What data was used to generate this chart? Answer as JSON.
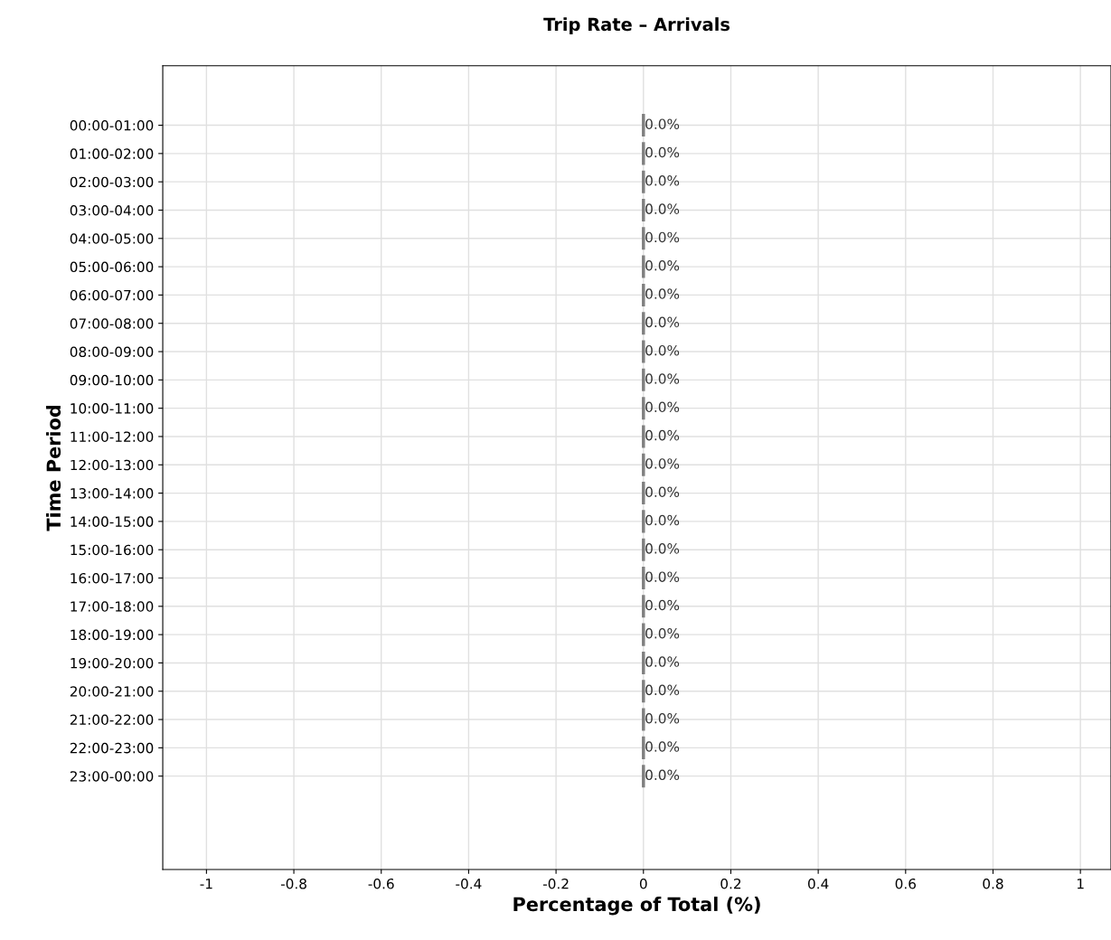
{
  "chart_data": {
    "type": "bar",
    "orientation": "horizontal",
    "title": "Trip Rate – Arrivals",
    "xlabel": "Percentage of Total (%)",
    "ylabel": "Time Period",
    "categories": [
      "00:00-01:00",
      "01:00-02:00",
      "02:00-03:00",
      "03:00-04:00",
      "04:00-05:00",
      "05:00-06:00",
      "06:00-07:00",
      "07:00-08:00",
      "08:00-09:00",
      "09:00-10:00",
      "10:00-11:00",
      "11:00-12:00",
      "12:00-13:00",
      "13:00-14:00",
      "14:00-15:00",
      "15:00-16:00",
      "16:00-17:00",
      "17:00-18:00",
      "18:00-19:00",
      "19:00-20:00",
      "20:00-21:00",
      "21:00-22:00",
      "22:00-23:00",
      "23:00-00:00"
    ],
    "values": [
      0,
      0,
      0,
      0,
      0,
      0,
      0,
      0,
      0,
      0,
      0,
      0,
      0,
      0,
      0,
      0,
      0,
      0,
      0,
      0,
      0,
      0,
      0,
      0
    ],
    "value_labels": [
      "0.0%",
      "0.0%",
      "0.0%",
      "0.0%",
      "0.0%",
      "0.0%",
      "0.0%",
      "0.0%",
      "0.0%",
      "0.0%",
      "0.0%",
      "0.0%",
      "0.0%",
      "0.0%",
      "0.0%",
      "0.0%",
      "0.0%",
      "0.0%",
      "0.0%",
      "0.0%",
      "0.0%",
      "0.0%",
      "0.0%",
      "0.0%"
    ],
    "color": "#808080",
    "xlim": [
      -1.1,
      1.07
    ],
    "xticks": [
      {
        "value": -1,
        "label": "-1"
      },
      {
        "value": -0.8,
        "label": "-0.8"
      },
      {
        "value": -0.6,
        "label": "-0.6"
      },
      {
        "value": -0.4,
        "label": "-0.4"
      },
      {
        "value": -0.2,
        "label": "-0.2"
      },
      0,
      0.2,
      0.4,
      0.6,
      0.8,
      1
    ],
    "grid": true
  }
}
